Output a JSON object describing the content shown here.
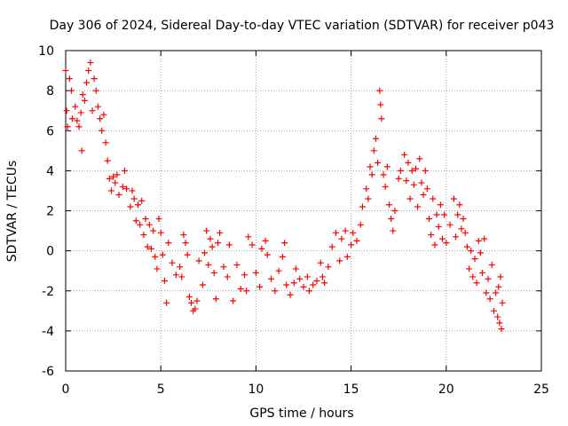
{
  "chart_data": {
    "type": "scatter",
    "title": "Day 306 of 2024, Sidereal Day-to-day VTEC variation (SDTVAR) for receiver p043",
    "xlabel": "GPS time / hours",
    "ylabel": "SDTVAR / TECUs",
    "xlim": [
      0,
      25
    ],
    "ylim": [
      -6,
      10
    ],
    "xticks": [
      0,
      5,
      10,
      15,
      20,
      25
    ],
    "yticks": [
      -6,
      -4,
      -2,
      0,
      2,
      4,
      6,
      8,
      10
    ],
    "xtick_labels": [
      "0",
      "5",
      "10",
      "15",
      "20",
      "25"
    ],
    "ytick_labels": [
      "-6",
      "-4",
      "-2",
      "0",
      "2",
      "4",
      "6",
      "8",
      "10"
    ],
    "grid": true,
    "marker": "+",
    "series": [
      {
        "name": "SDTVAR",
        "color": "#ff0000",
        "points": [
          [
            0.0,
            9.0
          ],
          [
            0.05,
            7.0
          ],
          [
            0.1,
            6.2
          ],
          [
            0.2,
            8.6
          ],
          [
            0.3,
            8.0
          ],
          [
            0.35,
            6.6
          ],
          [
            0.5,
            7.2
          ],
          [
            0.6,
            6.5
          ],
          [
            0.7,
            6.2
          ],
          [
            0.8,
            6.9
          ],
          [
            0.85,
            5.0
          ],
          [
            0.9,
            7.8
          ],
          [
            1.0,
            7.5
          ],
          [
            1.1,
            8.4
          ],
          [
            1.2,
            9.0
          ],
          [
            1.3,
            9.4
          ],
          [
            1.4,
            7.0
          ],
          [
            1.5,
            8.6
          ],
          [
            1.6,
            8.0
          ],
          [
            1.7,
            7.2
          ],
          [
            1.8,
            6.6
          ],
          [
            1.9,
            6.0
          ],
          [
            2.0,
            6.8
          ],
          [
            2.1,
            5.4
          ],
          [
            2.2,
            4.5
          ],
          [
            2.3,
            3.6
          ],
          [
            2.4,
            3.0
          ],
          [
            2.5,
            3.7
          ],
          [
            2.6,
            3.4
          ],
          [
            2.7,
            3.8
          ],
          [
            2.8,
            2.8
          ],
          [
            3.0,
            3.2
          ],
          [
            3.1,
            4.0
          ],
          [
            3.2,
            3.1
          ],
          [
            3.4,
            2.2
          ],
          [
            3.5,
            3.0
          ],
          [
            3.6,
            2.6
          ],
          [
            3.7,
            1.5
          ],
          [
            3.8,
            2.3
          ],
          [
            3.9,
            1.3
          ],
          [
            4.0,
            2.5
          ],
          [
            4.1,
            0.8
          ],
          [
            4.2,
            1.6
          ],
          [
            4.3,
            0.2
          ],
          [
            4.4,
            1.3
          ],
          [
            4.5,
            0.1
          ],
          [
            4.6,
            1.0
          ],
          [
            4.7,
            -0.3
          ],
          [
            4.8,
            -0.9
          ],
          [
            4.9,
            1.6
          ],
          [
            5.0,
            0.9
          ],
          [
            5.1,
            -0.2
          ],
          [
            5.2,
            -1.5
          ],
          [
            5.3,
            -2.6
          ],
          [
            5.4,
            0.4
          ],
          [
            5.6,
            -0.6
          ],
          [
            5.8,
            -1.2
          ],
          [
            6.0,
            -0.8
          ],
          [
            6.1,
            -1.3
          ],
          [
            6.2,
            0.8
          ],
          [
            6.3,
            0.4
          ],
          [
            6.4,
            -0.2
          ],
          [
            6.5,
            -2.3
          ],
          [
            6.6,
            -2.6
          ],
          [
            6.7,
            -3.0
          ],
          [
            6.8,
            -2.9
          ],
          [
            6.9,
            -2.5
          ],
          [
            7.0,
            -0.5
          ],
          [
            7.2,
            -1.7
          ],
          [
            7.3,
            -0.1
          ],
          [
            7.4,
            1.0
          ],
          [
            7.5,
            -0.7
          ],
          [
            7.6,
            0.6
          ],
          [
            7.7,
            0.2
          ],
          [
            7.8,
            -1.1
          ],
          [
            7.9,
            -2.4
          ],
          [
            8.0,
            0.4
          ],
          [
            8.1,
            0.9
          ],
          [
            8.3,
            -0.8
          ],
          [
            8.5,
            -1.3
          ],
          [
            8.6,
            0.3
          ],
          [
            8.8,
            -2.5
          ],
          [
            9.0,
            -0.7
          ],
          [
            9.2,
            -1.9
          ],
          [
            9.4,
            -1.2
          ],
          [
            9.5,
            -2.0
          ],
          [
            9.6,
            0.7
          ],
          [
            9.8,
            0.3
          ],
          [
            10.0,
            -1.1
          ],
          [
            10.2,
            -1.8
          ],
          [
            10.3,
            0.1
          ],
          [
            10.5,
            0.5
          ],
          [
            10.6,
            -0.2
          ],
          [
            10.8,
            -1.4
          ],
          [
            11.0,
            -2.0
          ],
          [
            11.2,
            -1.0
          ],
          [
            11.4,
            -0.3
          ],
          [
            11.5,
            0.4
          ],
          [
            11.6,
            -1.7
          ],
          [
            11.8,
            -2.2
          ],
          [
            12.0,
            -1.6
          ],
          [
            12.1,
            -0.9
          ],
          [
            12.3,
            -1.4
          ],
          [
            12.5,
            -1.8
          ],
          [
            12.7,
            -1.3
          ],
          [
            12.8,
            -2.0
          ],
          [
            13.0,
            -1.7
          ],
          [
            13.2,
            -1.5
          ],
          [
            13.4,
            -0.6
          ],
          [
            13.5,
            -1.3
          ],
          [
            13.6,
            -1.6
          ],
          [
            13.8,
            -0.8
          ],
          [
            14.0,
            0.2
          ],
          [
            14.2,
            0.9
          ],
          [
            14.4,
            -0.5
          ],
          [
            14.5,
            0.6
          ],
          [
            14.7,
            1.0
          ],
          [
            14.8,
            -0.3
          ],
          [
            15.0,
            0.3
          ],
          [
            15.1,
            0.9
          ],
          [
            15.3,
            0.5
          ],
          [
            15.5,
            1.3
          ],
          [
            15.6,
            2.2
          ],
          [
            15.8,
            3.1
          ],
          [
            15.9,
            2.6
          ],
          [
            16.0,
            4.2
          ],
          [
            16.1,
            3.8
          ],
          [
            16.2,
            5.0
          ],
          [
            16.3,
            5.6
          ],
          [
            16.4,
            4.4
          ],
          [
            16.5,
            8.0
          ],
          [
            16.55,
            7.3
          ],
          [
            16.6,
            6.6
          ],
          [
            16.7,
            3.8
          ],
          [
            16.8,
            3.2
          ],
          [
            16.9,
            4.2
          ],
          [
            17.0,
            2.3
          ],
          [
            17.1,
            1.6
          ],
          [
            17.2,
            1.0
          ],
          [
            17.3,
            2.0
          ],
          [
            17.5,
            3.6
          ],
          [
            17.6,
            4.0
          ],
          [
            17.8,
            4.8
          ],
          [
            17.9,
            3.5
          ],
          [
            18.0,
            4.4
          ],
          [
            18.1,
            2.6
          ],
          [
            18.2,
            4.0
          ],
          [
            18.3,
            3.3
          ],
          [
            18.4,
            4.1
          ],
          [
            18.5,
            2.2
          ],
          [
            18.6,
            4.6
          ],
          [
            18.7,
            3.4
          ],
          [
            18.8,
            2.8
          ],
          [
            18.9,
            4.0
          ],
          [
            19.0,
            3.1
          ],
          [
            19.1,
            1.6
          ],
          [
            19.2,
            0.8
          ],
          [
            19.3,
            2.6
          ],
          [
            19.4,
            0.3
          ],
          [
            19.5,
            1.8
          ],
          [
            19.6,
            1.2
          ],
          [
            19.7,
            2.3
          ],
          [
            19.8,
            0.6
          ],
          [
            19.9,
            1.8
          ],
          [
            20.0,
            0.4
          ],
          [
            20.2,
            1.3
          ],
          [
            20.4,
            2.6
          ],
          [
            20.5,
            0.7
          ],
          [
            20.6,
            1.8
          ],
          [
            20.7,
            2.3
          ],
          [
            20.8,
            1.1
          ],
          [
            20.9,
            1.6
          ],
          [
            21.0,
            0.9
          ],
          [
            21.1,
            0.2
          ],
          [
            21.2,
            -0.9
          ],
          [
            21.3,
            0.0
          ],
          [
            21.4,
            -1.3
          ],
          [
            21.5,
            -0.4
          ],
          [
            21.6,
            -1.6
          ],
          [
            21.7,
            0.5
          ],
          [
            21.8,
            -0.1
          ],
          [
            21.9,
            -1.1
          ],
          [
            22.0,
            0.6
          ],
          [
            22.1,
            -2.1
          ],
          [
            22.2,
            -1.4
          ],
          [
            22.3,
            -2.4
          ],
          [
            22.4,
            -0.7
          ],
          [
            22.5,
            -3.0
          ],
          [
            22.6,
            -2.1
          ],
          [
            22.7,
            -3.3
          ],
          [
            22.75,
            -1.8
          ],
          [
            22.8,
            -3.6
          ],
          [
            22.85,
            -1.3
          ],
          [
            22.9,
            -3.9
          ],
          [
            22.95,
            -2.6
          ]
        ]
      }
    ]
  }
}
